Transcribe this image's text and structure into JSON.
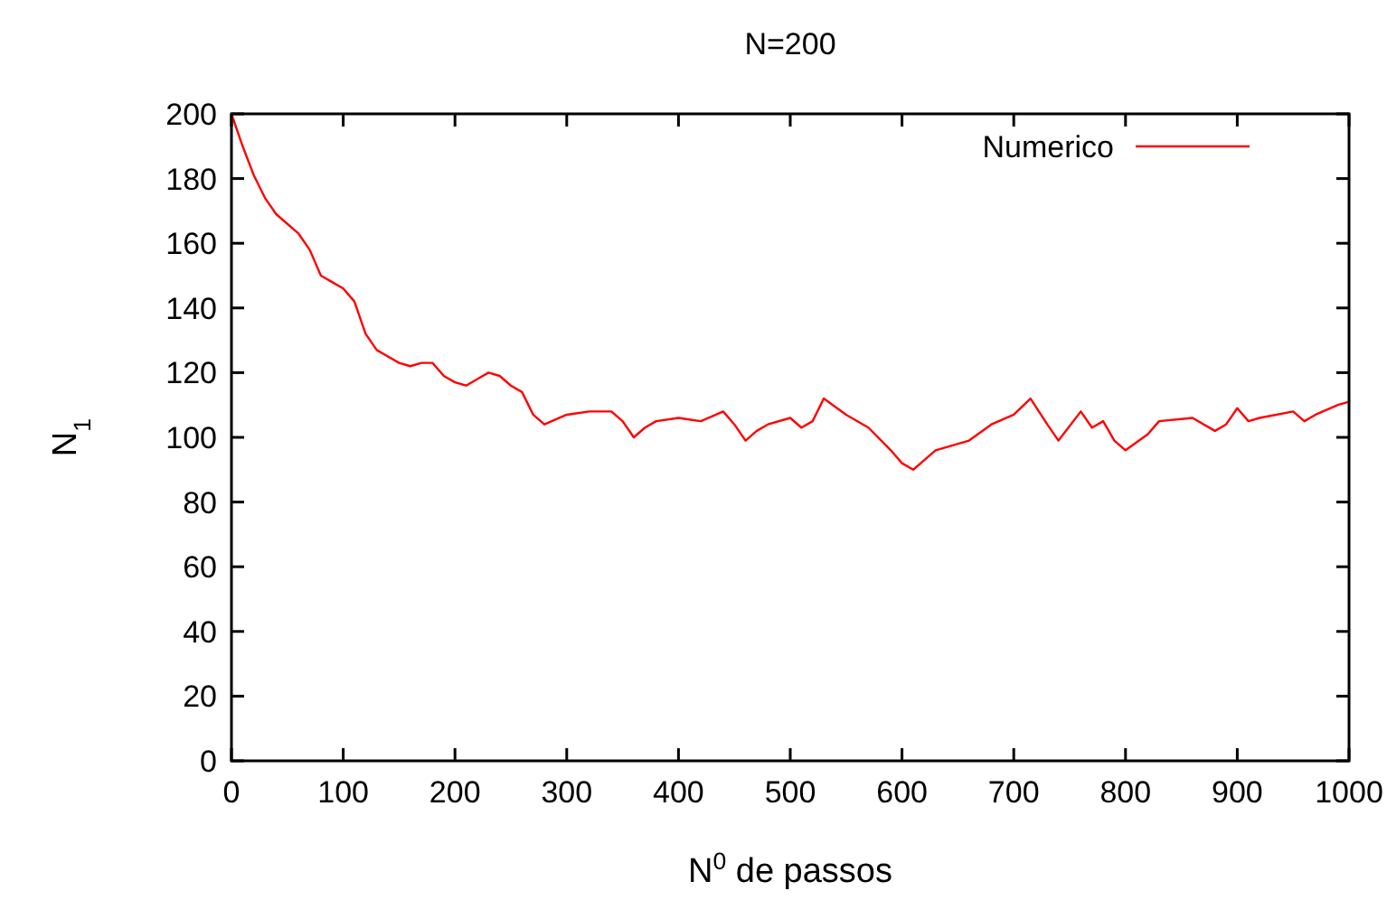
{
  "chart_data": {
    "type": "line",
    "title": "N=200",
    "xlabel": "N$^{0}$ de passos",
    "ylabel": "N$_{1}$",
    "xlim": [
      0,
      1000
    ],
    "ylim": [
      0,
      200
    ],
    "xticks": [
      0,
      100,
      200,
      300,
      400,
      500,
      600,
      700,
      800,
      900,
      1000
    ],
    "yticks": [
      0,
      20,
      40,
      60,
      80,
      100,
      120,
      140,
      160,
      180,
      200
    ],
    "grid": false,
    "legend": "top right",
    "line_style": "solid",
    "series": [
      {
        "name": "Numerico",
        "color": "#ff0000",
        "x": [
          0,
          10,
          20,
          30,
          40,
          50,
          60,
          70,
          80,
          90,
          100,
          110,
          120,
          130,
          140,
          150,
          160,
          170,
          180,
          190,
          200,
          210,
          220,
          230,
          240,
          250,
          260,
          270,
          280,
          300,
          320,
          340,
          350,
          360,
          370,
          380,
          400,
          420,
          440,
          450,
          460,
          470,
          480,
          500,
          510,
          520,
          530,
          550,
          570,
          590,
          600,
          610,
          620,
          630,
          660,
          680,
          700,
          715,
          730,
          740,
          760,
          770,
          780,
          790,
          800,
          820,
          830,
          860,
          880,
          890,
          900,
          910,
          920,
          950,
          960,
          970,
          990,
          1000
        ],
        "values": [
          200,
          190,
          181,
          174,
          169,
          166,
          163,
          158,
          150,
          148,
          146,
          142,
          132,
          127,
          125,
          123,
          122,
          123,
          123,
          119,
          117,
          116,
          118,
          120,
          119,
          116,
          114,
          107,
          104,
          107,
          108,
          108,
          105,
          100,
          103,
          105,
          106,
          105,
          108,
          104,
          99,
          102,
          104,
          106,
          103,
          105,
          112,
          107,
          103,
          96,
          92,
          90,
          93,
          96,
          99,
          104,
          107,
          112,
          104,
          99,
          108,
          103,
          105,
          99,
          96,
          101,
          105,
          106,
          102,
          104,
          109,
          105,
          106,
          108,
          105,
          107,
          110,
          111
        ]
      }
    ]
  }
}
